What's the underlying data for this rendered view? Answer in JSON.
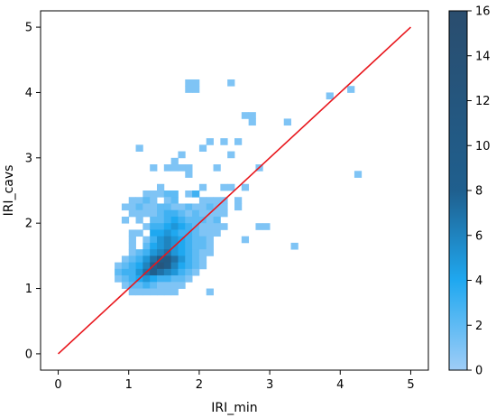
{
  "chart_data": {
    "type": "heatmap",
    "title": "",
    "xlabel": "IRI_min",
    "ylabel": "IRI_cavs",
    "xlim": [
      -0.25,
      5.25
    ],
    "ylim": [
      -0.25,
      5.25
    ],
    "x_ticks": [
      "0",
      "1",
      "2",
      "3",
      "4",
      "5"
    ],
    "y_ticks": [
      "0",
      "1",
      "2",
      "3",
      "4",
      "5"
    ],
    "grid": false,
    "bin_width": 0.1,
    "reference_line": {
      "x": [
        0,
        5
      ],
      "y": [
        0,
        5
      ],
      "color": "#e8161c"
    },
    "colorbar": {
      "min": 0,
      "max": 16,
      "ticks": [
        "0",
        "2",
        "4",
        "6",
        "8",
        "10",
        "12",
        "14",
        "16"
      ],
      "colors": [
        "#9fcdf7",
        "#1fa8f0",
        "#1f5f8e",
        "#2a4d6e"
      ]
    },
    "bins": [
      [
        1.8,
        4.1,
        1
      ],
      [
        1.9,
        4.1,
        1
      ],
      [
        1.8,
        4.0,
        1
      ],
      [
        1.9,
        4.0,
        1
      ],
      [
        2.4,
        4.1,
        1
      ],
      [
        3.8,
        3.9,
        1
      ],
      [
        4.1,
        4.0,
        1
      ],
      [
        2.6,
        3.6,
        1
      ],
      [
        2.7,
        3.6,
        1
      ],
      [
        2.7,
        3.5,
        1
      ],
      [
        3.2,
        3.5,
        1
      ],
      [
        2.1,
        3.2,
        1
      ],
      [
        2.3,
        3.2,
        1
      ],
      [
        1.1,
        3.1,
        1
      ],
      [
        2.0,
        3.1,
        1
      ],
      [
        2.4,
        3.0,
        1
      ],
      [
        2.5,
        3.2,
        1
      ],
      [
        1.7,
        3.0,
        1
      ],
      [
        1.6,
        2.9,
        1
      ],
      [
        1.8,
        2.8,
        1
      ],
      [
        2.2,
        2.8,
        1
      ],
      [
        1.5,
        2.8,
        1
      ],
      [
        1.3,
        2.8,
        1
      ],
      [
        2.8,
        2.8,
        1
      ],
      [
        1.6,
        2.8,
        1
      ],
      [
        1.7,
        2.8,
        1
      ],
      [
        4.2,
        2.7,
        1
      ],
      [
        1.8,
        2.7,
        1
      ],
      [
        2.6,
        2.5,
        1
      ],
      [
        2.3,
        2.5,
        1
      ],
      [
        2.4,
        2.5,
        1
      ],
      [
        1.4,
        2.5,
        1
      ],
      [
        2.0,
        2.5,
        1
      ],
      [
        1.2,
        2.4,
        1
      ],
      [
        1.3,
        2.4,
        1
      ],
      [
        1.4,
        2.4,
        1
      ],
      [
        1.5,
        2.4,
        2
      ],
      [
        1.6,
        2.4,
        2
      ],
      [
        1.8,
        2.4,
        1
      ],
      [
        1.9,
        2.4,
        3
      ],
      [
        1.0,
        2.3,
        1
      ],
      [
        1.1,
        2.3,
        1
      ],
      [
        1.2,
        2.3,
        2
      ],
      [
        1.3,
        2.3,
        1
      ],
      [
        1.5,
        2.3,
        1
      ],
      [
        1.6,
        2.3,
        2
      ],
      [
        2.0,
        2.3,
        1
      ],
      [
        2.1,
        2.3,
        1
      ],
      [
        2.2,
        2.3,
        1
      ],
      [
        2.3,
        2.3,
        1
      ],
      [
        2.5,
        2.3,
        1
      ],
      [
        0.9,
        2.2,
        1
      ],
      [
        1.0,
        2.2,
        1
      ],
      [
        1.1,
        2.2,
        2
      ],
      [
        1.2,
        2.2,
        1
      ],
      [
        1.3,
        2.2,
        1
      ],
      [
        1.4,
        2.2,
        2
      ],
      [
        1.5,
        2.2,
        2
      ],
      [
        1.6,
        2.2,
        1
      ],
      [
        1.7,
        2.2,
        1
      ],
      [
        1.8,
        2.2,
        2
      ],
      [
        1.9,
        2.2,
        1
      ],
      [
        2.0,
        2.2,
        1
      ],
      [
        2.1,
        2.2,
        2
      ],
      [
        2.2,
        2.2,
        1
      ],
      [
        2.3,
        2.2,
        1
      ],
      [
        2.5,
        2.2,
        1
      ],
      [
        1.0,
        2.1,
        1
      ],
      [
        1.1,
        2.1,
        1
      ],
      [
        1.2,
        2.1,
        1
      ],
      [
        1.3,
        2.1,
        1
      ],
      [
        1.4,
        2.1,
        2
      ],
      [
        1.5,
        2.1,
        3
      ],
      [
        1.6,
        2.1,
        3
      ],
      [
        1.7,
        2.1,
        2
      ],
      [
        1.8,
        2.1,
        1
      ],
      [
        1.9,
        2.1,
        2
      ],
      [
        2.0,
        2.1,
        1
      ],
      [
        2.1,
        2.1,
        1
      ],
      [
        2.2,
        2.1,
        1
      ],
      [
        2.3,
        2.1,
        1
      ],
      [
        0.9,
        2.0,
        1
      ],
      [
        1.1,
        2.0,
        1
      ],
      [
        1.3,
        2.0,
        2
      ],
      [
        1.4,
        2.0,
        2
      ],
      [
        1.5,
        2.0,
        3
      ],
      [
        1.6,
        2.0,
        4
      ],
      [
        1.7,
        2.0,
        3
      ],
      [
        1.8,
        2.0,
        2
      ],
      [
        1.9,
        2.0,
        2
      ],
      [
        2.0,
        2.0,
        2
      ],
      [
        2.1,
        2.0,
        1
      ],
      [
        2.2,
        2.0,
        2
      ],
      [
        1.2,
        1.9,
        1
      ],
      [
        1.3,
        1.9,
        3
      ],
      [
        1.4,
        1.9,
        3
      ],
      [
        1.5,
        1.9,
        4
      ],
      [
        1.6,
        1.9,
        5
      ],
      [
        1.7,
        1.9,
        4
      ],
      [
        1.8,
        1.9,
        3
      ],
      [
        1.9,
        1.9,
        2
      ],
      [
        2.0,
        1.9,
        1
      ],
      [
        2.1,
        1.9,
        1
      ],
      [
        2.2,
        1.9,
        1
      ],
      [
        2.3,
        1.9,
        1
      ],
      [
        2.8,
        1.9,
        1
      ],
      [
        2.9,
        1.9,
        1
      ],
      [
        1.0,
        1.8,
        1
      ],
      [
        1.1,
        1.8,
        1
      ],
      [
        1.3,
        1.8,
        4
      ],
      [
        1.4,
        1.8,
        4
      ],
      [
        1.5,
        1.8,
        5
      ],
      [
        1.6,
        1.8,
        4
      ],
      [
        1.7,
        1.8,
        3
      ],
      [
        1.8,
        1.8,
        3
      ],
      [
        1.9,
        1.8,
        2
      ],
      [
        2.0,
        1.8,
        1
      ],
      [
        2.1,
        1.8,
        1
      ],
      [
        2.2,
        1.8,
        1
      ],
      [
        1.0,
        1.7,
        1
      ],
      [
        1.2,
        1.7,
        1
      ],
      [
        1.3,
        1.7,
        3
      ],
      [
        1.4,
        1.7,
        5
      ],
      [
        1.5,
        1.7,
        6
      ],
      [
        1.6,
        1.7,
        5
      ],
      [
        1.7,
        1.7,
        4
      ],
      [
        1.8,
        1.7,
        3
      ],
      [
        1.9,
        1.7,
        2
      ],
      [
        2.0,
        1.7,
        2
      ],
      [
        2.1,
        1.7,
        1
      ],
      [
        2.6,
        1.7,
        1
      ],
      [
        1.0,
        1.6,
        1
      ],
      [
        1.2,
        1.6,
        2
      ],
      [
        1.3,
        1.6,
        4
      ],
      [
        1.4,
        1.6,
        5
      ],
      [
        1.5,
        1.6,
        6
      ],
      [
        1.6,
        1.6,
        5
      ],
      [
        1.7,
        1.6,
        4
      ],
      [
        1.8,
        1.6,
        3
      ],
      [
        1.9,
        1.6,
        2
      ],
      [
        2.0,
        1.6,
        2
      ],
      [
        2.1,
        1.6,
        1
      ],
      [
        3.3,
        1.6,
        1
      ],
      [
        1.0,
        1.5,
        1
      ],
      [
        1.1,
        1.5,
        2
      ],
      [
        1.2,
        1.5,
        3
      ],
      [
        1.3,
        1.5,
        5
      ],
      [
        1.4,
        1.5,
        6
      ],
      [
        1.5,
        1.5,
        7
      ],
      [
        1.6,
        1.5,
        5
      ],
      [
        1.7,
        1.5,
        4
      ],
      [
        1.8,
        1.5,
        3
      ],
      [
        1.9,
        1.5,
        2
      ],
      [
        2.0,
        1.5,
        1
      ],
      [
        2.1,
        1.5,
        1
      ],
      [
        0.9,
        1.4,
        1
      ],
      [
        1.0,
        1.4,
        2
      ],
      [
        1.1,
        1.4,
        3
      ],
      [
        1.2,
        1.4,
        5
      ],
      [
        1.3,
        1.4,
        7
      ],
      [
        1.4,
        1.4,
        9
      ],
      [
        1.5,
        1.4,
        10
      ],
      [
        1.6,
        1.4,
        7
      ],
      [
        1.7,
        1.4,
        5
      ],
      [
        1.8,
        1.4,
        3
      ],
      [
        1.9,
        1.4,
        2
      ],
      [
        2.0,
        1.4,
        1
      ],
      [
        0.8,
        1.3,
        1
      ],
      [
        0.9,
        1.3,
        2
      ],
      [
        1.0,
        1.3,
        3
      ],
      [
        1.1,
        1.3,
        4
      ],
      [
        1.2,
        1.3,
        6
      ],
      [
        1.3,
        1.3,
        8
      ],
      [
        1.4,
        1.3,
        12
      ],
      [
        1.5,
        1.3,
        9
      ],
      [
        1.6,
        1.3,
        6
      ],
      [
        1.7,
        1.3,
        4
      ],
      [
        1.8,
        1.3,
        3
      ],
      [
        1.9,
        1.3,
        2
      ],
      [
        2.0,
        1.3,
        1
      ],
      [
        0.8,
        1.2,
        2
      ],
      [
        0.9,
        1.2,
        3
      ],
      [
        1.0,
        1.2,
        3
      ],
      [
        1.1,
        1.2,
        5
      ],
      [
        1.2,
        1.2,
        7
      ],
      [
        1.3,
        1.2,
        8
      ],
      [
        1.4,
        1.2,
        7
      ],
      [
        1.5,
        1.2,
        6
      ],
      [
        1.6,
        1.2,
        5
      ],
      [
        1.7,
        1.2,
        3
      ],
      [
        1.8,
        1.2,
        2
      ],
      [
        1.9,
        1.2,
        1
      ],
      [
        0.8,
        1.1,
        1
      ],
      [
        0.9,
        1.1,
        2
      ],
      [
        1.0,
        1.1,
        3
      ],
      [
        1.1,
        1.1,
        4
      ],
      [
        1.2,
        1.1,
        5
      ],
      [
        1.3,
        1.1,
        4
      ],
      [
        1.4,
        1.1,
        3
      ],
      [
        1.5,
        1.1,
        3
      ],
      [
        1.6,
        1.1,
        2
      ],
      [
        1.7,
        1.1,
        2
      ],
      [
        1.8,
        1.1,
        1
      ],
      [
        0.9,
        1.0,
        1
      ],
      [
        1.0,
        1.0,
        2
      ],
      [
        1.1,
        1.0,
        2
      ],
      [
        1.2,
        1.0,
        3
      ],
      [
        1.3,
        1.0,
        2
      ],
      [
        1.4,
        1.0,
        1
      ],
      [
        1.5,
        1.0,
        1
      ],
      [
        1.6,
        1.0,
        1
      ],
      [
        1.7,
        1.0,
        1
      ],
      [
        1.0,
        0.9,
        1
      ],
      [
        1.1,
        0.9,
        1
      ],
      [
        1.2,
        0.9,
        1
      ],
      [
        1.3,
        0.9,
        1
      ],
      [
        1.4,
        0.9,
        1
      ],
      [
        1.5,
        0.9,
        1
      ],
      [
        1.6,
        0.9,
        1
      ],
      [
        2.1,
        0.9,
        1
      ]
    ]
  }
}
